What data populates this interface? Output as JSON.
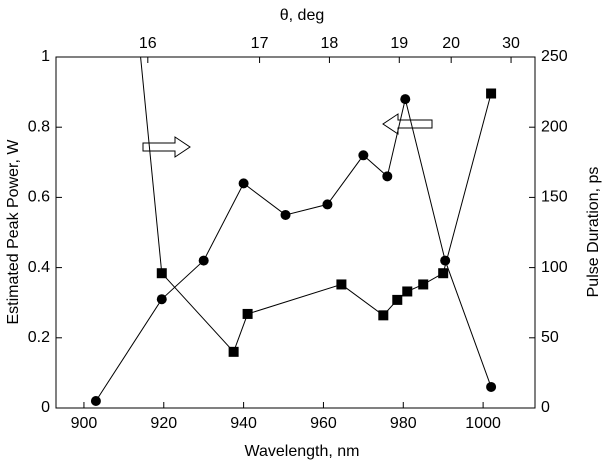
{
  "chart_data": {
    "type": "line",
    "x_label": "Wavelength, nm",
    "y_label": "Estimated Peak Power, W",
    "y2_label": "Pulse Duration, ps",
    "x2_label": "θ, deg",
    "xlim": [
      893,
      1013
    ],
    "xticks": [
      900,
      920,
      940,
      960,
      980,
      1000
    ],
    "x2ticks": [
      {
        "value": 916,
        "label": "16"
      },
      {
        "value": 944,
        "label": "17"
      },
      {
        "value": 961.5,
        "label": "18"
      },
      {
        "value": 979,
        "label": "19"
      },
      {
        "value": 992,
        "label": "20"
      },
      {
        "value": 1007,
        "label": "30"
      }
    ],
    "ylim": [
      0,
      1
    ],
    "yticks": [
      0,
      0.2,
      0.4,
      0.6,
      0.8,
      1
    ],
    "y2lim": [
      0,
      250
    ],
    "y2ticks": [
      0,
      50,
      100,
      150,
      200,
      250
    ],
    "series": [
      {
        "marker": "circle",
        "color": "#000000",
        "x": [
          903,
          919.5,
          930,
          940,
          950.5,
          961,
          970,
          976,
          980.5,
          990.5,
          1002
        ],
        "values": [
          0.02,
          0.31,
          0.42,
          0.64,
          0.55,
          0.58,
          0.72,
          0.66,
          0.88,
          0.42,
          0.06
        ]
      },
      {
        "marker": "square",
        "color": "#000000",
        "axis": "y2",
        "x": [
          913.5,
          919.5,
          937.5,
          941,
          964.5,
          975,
          978.5,
          981,
          985,
          990,
          1002
        ],
        "values": [
          270,
          96,
          40,
          67,
          88,
          66,
          77,
          83,
          88,
          96,
          224
        ]
      }
    ]
  }
}
